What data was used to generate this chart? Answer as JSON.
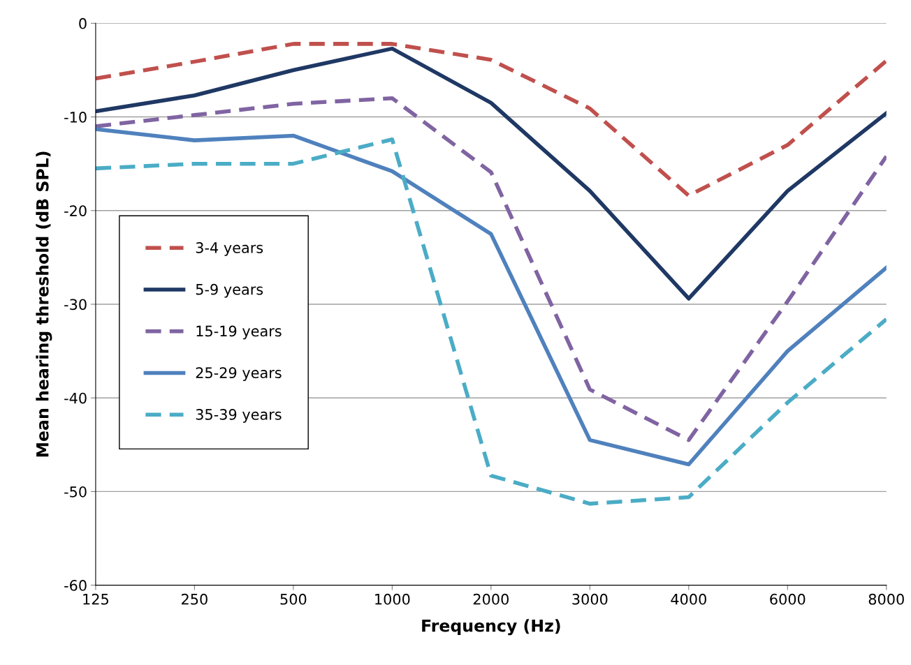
{
  "chart_data": {
    "type": "line",
    "xlabel": "Frequency (Hz)",
    "ylabel": "Mean hearing threshold (dB SPL)",
    "categories": [
      "125",
      "250",
      "500",
      "1000",
      "2000",
      "3000",
      "4000",
      "6000",
      "8000"
    ],
    "series": [
      {
        "name": "3-4 years",
        "color": "#c0504d",
        "line_style": "dashed",
        "values": [
          -5.9,
          -4.1,
          -2.2,
          -2.2,
          -3.9,
          -9.1,
          -18.4,
          -13.0,
          -4.0
        ]
      },
      {
        "name": "5-9 years",
        "color": "#1f3864",
        "line_style": "solid",
        "values": [
          -9.4,
          -7.7,
          -5.0,
          -2.7,
          -8.5,
          -17.9,
          -29.4,
          -17.9,
          -9.6
        ]
      },
      {
        "name": "15-19 years",
        "color": "#8064a2",
        "line_style": "dashed",
        "values": [
          -11.0,
          -9.8,
          -8.6,
          -8.0,
          -15.9,
          -39.1,
          -44.5,
          -29.7,
          -14.2
        ]
      },
      {
        "name": "25-29 years",
        "color": "#4f81bd",
        "line_style": "solid",
        "values": [
          -11.3,
          -12.5,
          -12.0,
          -15.8,
          -22.5,
          -44.5,
          -47.1,
          -35.0,
          -26.1
        ]
      },
      {
        "name": "35-39 years",
        "color": "#4bacc6",
        "line_style": "dashed",
        "values": [
          -15.5,
          -15.0,
          -15.0,
          -12.4,
          -48.3,
          -51.3,
          -50.6,
          -40.5,
          -31.6
        ]
      }
    ],
    "ylim": [
      -60,
      0
    ],
    "yticks": [
      -60,
      -50,
      -40,
      -30,
      -20,
      -10,
      0
    ],
    "grid": "y",
    "legend": "left",
    "marker": "none"
  }
}
